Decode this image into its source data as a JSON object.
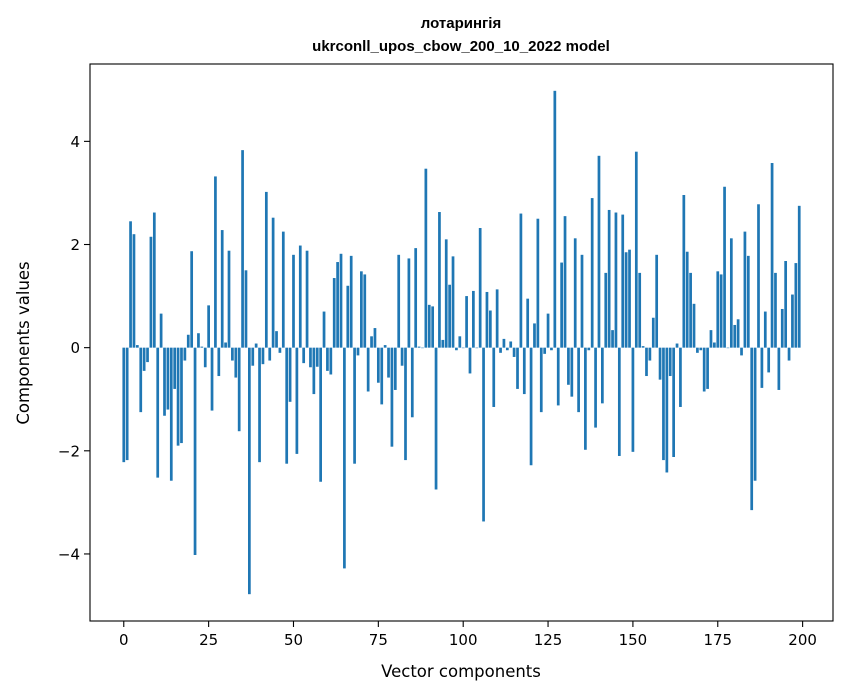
{
  "chart_data": {
    "type": "bar",
    "title": "лотарингія",
    "subtitle": "ukrconll_upos_cbow_200_10_2022 model",
    "xlabel": "Vector components",
    "ylabel": "Components values",
    "xlim": [
      -9.95,
      208.95
    ],
    "ylim": [
      -5.3,
      5.5
    ],
    "xticks": [
      0,
      25,
      50,
      75,
      100,
      125,
      150,
      175,
      200
    ],
    "yticks": [
      -4,
      -2,
      0,
      2,
      4
    ],
    "xtick_labels": [
      "0",
      "25",
      "50",
      "75",
      "100",
      "125",
      "150",
      "175",
      "200"
    ],
    "ytick_labels": [
      "−4",
      "−2",
      "0",
      "2",
      "4"
    ],
    "bar_color": "#1f77b4",
    "grid": false,
    "x": [
      0,
      1,
      2,
      3,
      4,
      5,
      6,
      7,
      8,
      9,
      10,
      11,
      12,
      13,
      14,
      15,
      16,
      17,
      18,
      19,
      20,
      21,
      22,
      23,
      24,
      25,
      26,
      27,
      28,
      29,
      30,
      31,
      32,
      33,
      34,
      35,
      36,
      37,
      38,
      39,
      40,
      41,
      42,
      43,
      44,
      45,
      46,
      47,
      48,
      49,
      50,
      51,
      52,
      53,
      54,
      55,
      56,
      57,
      58,
      59,
      60,
      61,
      62,
      63,
      64,
      65,
      66,
      67,
      68,
      69,
      70,
      71,
      72,
      73,
      74,
      75,
      76,
      77,
      78,
      79,
      80,
      81,
      82,
      83,
      84,
      85,
      86,
      87,
      88,
      89,
      90,
      91,
      92,
      93,
      94,
      95,
      96,
      97,
      98,
      99,
      100,
      101,
      102,
      103,
      104,
      105,
      106,
      107,
      108,
      109,
      110,
      111,
      112,
      113,
      114,
      115,
      116,
      117,
      118,
      119,
      120,
      121,
      122,
      123,
      124,
      125,
      126,
      127,
      128,
      129,
      130,
      131,
      132,
      133,
      134,
      135,
      136,
      137,
      138,
      139,
      140,
      141,
      142,
      143,
      144,
      145,
      146,
      147,
      148,
      149,
      150,
      151,
      152,
      153,
      154,
      155,
      156,
      157,
      158,
      159,
      160,
      161,
      162,
      163,
      164,
      165,
      166,
      167,
      168,
      169,
      170,
      171,
      172,
      173,
      174,
      175,
      176,
      177,
      178,
      179,
      180,
      181,
      182,
      183,
      184,
      185,
      186,
      187,
      188,
      189,
      190,
      191,
      192,
      193,
      194,
      195,
      196,
      197,
      198,
      199
    ],
    "values": [
      -2.22,
      -2.18,
      2.45,
      2.2,
      0.05,
      -1.25,
      -0.45,
      -0.28,
      2.15,
      2.62,
      -2.52,
      0.66,
      -1.32,
      -1.2,
      -2.58,
      -0.8,
      -1.9,
      -1.85,
      -0.25,
      0.25,
      1.87,
      -4.02,
      0.28,
      0.02,
      -0.38,
      0.82,
      -1.22,
      3.32,
      -0.55,
      2.28,
      0.1,
      1.88,
      -0.25,
      -0.58,
      -1.62,
      3.83,
      1.5,
      -4.78,
      -0.35,
      0.08,
      -2.22,
      -0.32,
      3.02,
      -0.25,
      2.52,
      0.32,
      -0.1,
      2.25,
      -2.25,
      -1.05,
      1.8,
      -2.06,
      1.98,
      -0.3,
      1.88,
      -0.38,
      -0.9,
      -0.37,
      -2.6,
      0.7,
      -0.45,
      -0.52,
      1.35,
      1.66,
      1.82,
      -4.28,
      1.2,
      1.78,
      -2.25,
      -0.15,
      1.48,
      1.42,
      -0.85,
      0.22,
      0.38,
      -0.68,
      -1.1,
      0.05,
      -0.58,
      -1.92,
      -0.82,
      1.8,
      -0.35,
      -2.18,
      1.73,
      -1.35,
      1.93,
      0.02,
      0.0,
      3.47,
      0.83,
      0.8,
      -2.75,
      2.63,
      0.15,
      2.1,
      1.22,
      1.77,
      -0.05,
      0.22,
      0.0,
      1.0,
      -0.5,
      1.1,
      0.0,
      2.32,
      -3.37,
      1.08,
      0.72,
      -1.15,
      1.13,
      -0.1,
      0.17,
      -0.05,
      0.12,
      -0.18,
      -0.8,
      2.6,
      -0.9,
      0.95,
      -2.28,
      0.47,
      2.5,
      -1.25,
      -0.12,
      0.66,
      -0.05,
      4.98,
      -1.12,
      1.65,
      2.55,
      -0.72,
      -0.95,
      2.12,
      -1.25,
      1.8,
      -1.98,
      -0.05,
      2.9,
      -1.55,
      3.72,
      -1.08,
      1.45,
      2.67,
      0.34,
      2.62,
      -2.1,
      2.58,
      1.85,
      1.9,
      -2.02,
      3.8,
      1.45,
      0.03,
      -0.55,
      -0.25,
      0.58,
      1.8,
      -0.62,
      -2.18,
      -2.42,
      -0.55,
      -2.12,
      0.08,
      -1.15,
      2.96,
      1.86,
      1.45,
      0.85,
      -0.1,
      -0.05,
      -0.85,
      -0.8,
      0.34,
      0.1,
      1.48,
      1.42,
      3.12,
      0.0,
      2.12,
      0.44,
      0.55,
      -0.15,
      2.25,
      1.78,
      -3.15,
      -2.58,
      2.78,
      -0.78,
      0.7,
      -0.48,
      3.58,
      1.45,
      -0.82,
      0.75,
      1.68,
      -0.25,
      1.03,
      1.64,
      2.75
    ]
  }
}
